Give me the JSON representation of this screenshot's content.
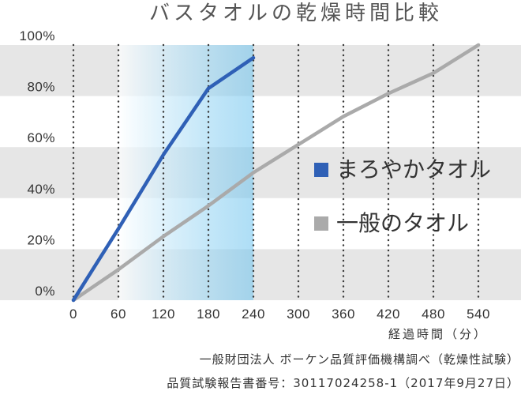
{
  "chart_data": {
    "type": "line",
    "title": "バスタオルの乾燥時間比較",
    "xlabel": "経過時間（分）",
    "xlim": [
      0,
      540
    ],
    "ylim": [
      0,
      100
    ],
    "x_ticks": [
      0,
      60,
      120,
      180,
      240,
      300,
      360,
      420,
      480,
      540
    ],
    "x_tick_labels": [
      "0",
      "60",
      "120",
      "180",
      "240",
      "300",
      "360",
      "420",
      "480",
      "540"
    ],
    "y_ticks": [
      0,
      20,
      40,
      60,
      80,
      100
    ],
    "y_tick_labels": [
      "0%",
      "20%",
      "40%",
      "60%",
      "80%",
      "100%"
    ],
    "grid": true,
    "band_color": "#e6e6e6",
    "grid_color": "#3a3a3a",
    "highlight": {
      "x_range": [
        60,
        240
      ],
      "color": "#6cc3ee"
    },
    "legend_placement": "right",
    "series": [
      {
        "name": "まろやかタオル",
        "color": "#2f60b6",
        "x": [
          0,
          60,
          120,
          180,
          240
        ],
        "values": [
          0,
          28,
          57,
          83,
          95
        ]
      },
      {
        "name": "一般のタオル",
        "color": "#aaaaaa",
        "x": [
          0,
          60,
          120,
          180,
          240,
          300,
          360,
          420,
          480,
          540
        ],
        "values": [
          0,
          12,
          25,
          37,
          50,
          61,
          72,
          81,
          89,
          100
        ]
      }
    ]
  },
  "footer": {
    "source": "一般財団法人 ボーケン品質評価機構調べ（乾燥性試験）",
    "report": "品質試験報告書番号：30117024258-1（2017年9月27日）"
  }
}
